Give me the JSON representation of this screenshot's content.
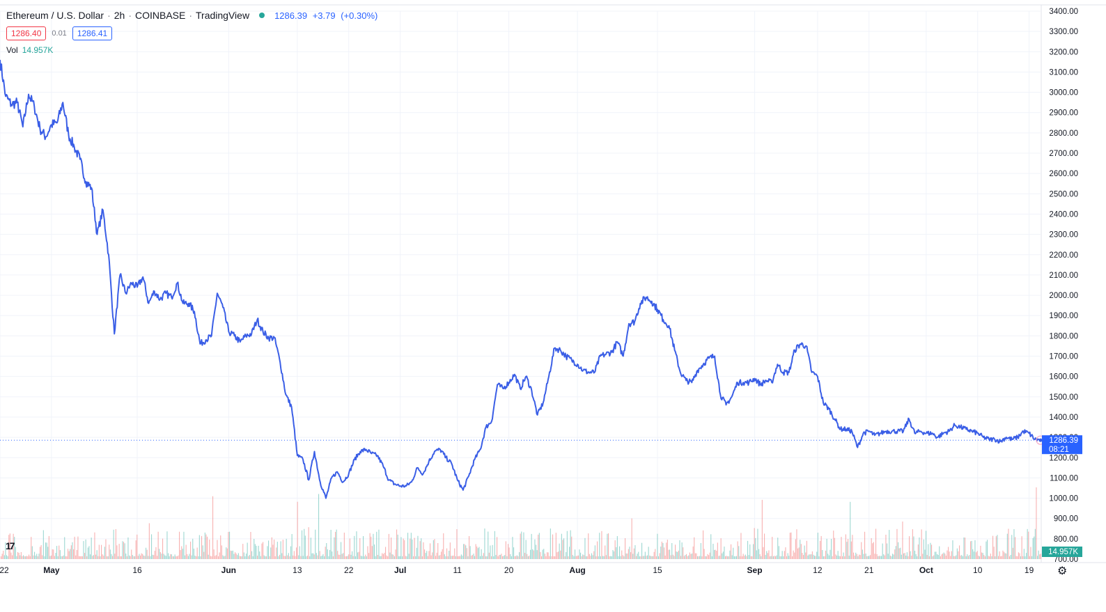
{
  "header": {
    "symbol": "Ethereum / U.S. Dollar",
    "interval": "2h",
    "exchange": "COINBASE",
    "source": "TradingView",
    "sep1": "·",
    "sep2": "·",
    "sep3": "·",
    "last": "1286.39",
    "change": "+3.79",
    "change_pct": "(+0.30%)",
    "bid": "1286.40",
    "spread": "0.01",
    "ask": "1286.41",
    "vol_label": "Vol",
    "vol_value": "14.957K",
    "price_tag": "1286.39",
    "countdown": "08:21",
    "vol_tag": "14.957K"
  },
  "colors": {
    "line": "#3a5ee6",
    "up": "#26a69a",
    "down": "#ef5350",
    "grid": "#f0f3fa",
    "axis_text": "#131722",
    "tag": "#2962ff"
  },
  "icons": {
    "logo": "tradingview-logo-icon",
    "settings": "gear-icon"
  },
  "chart_data": {
    "type": "line",
    "title": "",
    "xlabel": "",
    "ylabel": "",
    "ylim": [
      700,
      3400
    ],
    "y_ticks": [
      "3400.00",
      "3300.00",
      "3200.00",
      "3100.00",
      "3000.00",
      "2900.00",
      "2800.00",
      "2700.00",
      "2600.00",
      "2500.00",
      "2400.00",
      "2300.00",
      "2200.00",
      "2100.00",
      "2000.00",
      "1900.00",
      "1800.00",
      "1700.00",
      "1600.00",
      "1500.00",
      "1400.00",
      "1300.00",
      "1200.00",
      "1100.00",
      "1000.00",
      "900.00",
      "800.00",
      "700.00"
    ],
    "x_ticks": [
      "22",
      "May",
      "16",
      "Jun",
      "13",
      "22",
      "Jul",
      "11",
      "20",
      "Aug",
      "15",
      "Sep",
      "12",
      "21",
      "Oct",
      "10",
      "19"
    ],
    "x_tick_dates": [
      "2022-04-22",
      "2022-05-01",
      "2022-05-16",
      "2022-06-01",
      "2022-06-13",
      "2022-06-22",
      "2022-07-01",
      "2022-07-11",
      "2022-07-20",
      "2022-08-01",
      "2022-08-15",
      "2022-09-01",
      "2022-09-12",
      "2022-09-21",
      "2022-10-01",
      "2022-10-10",
      "2022-10-19"
    ],
    "xlim": [
      "2022-04-22",
      "2022-10-21"
    ],
    "grid": true,
    "series": [
      {
        "x": [
          "2022-04-22",
          "2022-04-23",
          "2022-04-24",
          "2022-04-25",
          "2022-04-26",
          "2022-04-27",
          "2022-04-28",
          "2022-04-29",
          "2022-04-30",
          "2022-05-01",
          "2022-05-02",
          "2022-05-03",
          "2022-05-04",
          "2022-05-05",
          "2022-05-06",
          "2022-05-07",
          "2022-05-08",
          "2022-05-09",
          "2022-05-10",
          "2022-05-11",
          "2022-05-12",
          "2022-05-13",
          "2022-05-14",
          "2022-05-15",
          "2022-05-16",
          "2022-05-17",
          "2022-05-18",
          "2022-05-19",
          "2022-05-20",
          "2022-05-21",
          "2022-05-22",
          "2022-05-23",
          "2022-05-24",
          "2022-05-25",
          "2022-05-26",
          "2022-05-27",
          "2022-05-28",
          "2022-05-29",
          "2022-05-30",
          "2022-05-31",
          "2022-06-01",
          "2022-06-02",
          "2022-06-03",
          "2022-06-04",
          "2022-06-05",
          "2022-06-06",
          "2022-06-07",
          "2022-06-08",
          "2022-06-09",
          "2022-06-10",
          "2022-06-11",
          "2022-06-12",
          "2022-06-13",
          "2022-06-14",
          "2022-06-15",
          "2022-06-16",
          "2022-06-17",
          "2022-06-18",
          "2022-06-19",
          "2022-06-20",
          "2022-06-21",
          "2022-06-22",
          "2022-06-23",
          "2022-06-24",
          "2022-06-25",
          "2022-06-26",
          "2022-06-27",
          "2022-06-28",
          "2022-06-29",
          "2022-06-30",
          "2022-07-01",
          "2022-07-02",
          "2022-07-03",
          "2022-07-04",
          "2022-07-05",
          "2022-07-06",
          "2022-07-07",
          "2022-07-08",
          "2022-07-09",
          "2022-07-10",
          "2022-07-11",
          "2022-07-12",
          "2022-07-13",
          "2022-07-14",
          "2022-07-15",
          "2022-07-16",
          "2022-07-17",
          "2022-07-18",
          "2022-07-19",
          "2022-07-20",
          "2022-07-21",
          "2022-07-22",
          "2022-07-23",
          "2022-07-24",
          "2022-07-25",
          "2022-07-26",
          "2022-07-27",
          "2022-07-28",
          "2022-07-29",
          "2022-07-30",
          "2022-07-31",
          "2022-08-01",
          "2022-08-02",
          "2022-08-03",
          "2022-08-04",
          "2022-08-05",
          "2022-08-06",
          "2022-08-07",
          "2022-08-08",
          "2022-08-09",
          "2022-08-10",
          "2022-08-11",
          "2022-08-12",
          "2022-08-13",
          "2022-08-14",
          "2022-08-15",
          "2022-08-16",
          "2022-08-17",
          "2022-08-18",
          "2022-08-19",
          "2022-08-20",
          "2022-08-21",
          "2022-08-22",
          "2022-08-23",
          "2022-08-24",
          "2022-08-25",
          "2022-08-26",
          "2022-08-27",
          "2022-08-28",
          "2022-08-29",
          "2022-08-30",
          "2022-08-31",
          "2022-09-01",
          "2022-09-02",
          "2022-09-03",
          "2022-09-04",
          "2022-09-05",
          "2022-09-06",
          "2022-09-07",
          "2022-09-08",
          "2022-09-09",
          "2022-09-10",
          "2022-09-11",
          "2022-09-12",
          "2022-09-13",
          "2022-09-14",
          "2022-09-15",
          "2022-09-16",
          "2022-09-17",
          "2022-09-18",
          "2022-09-19",
          "2022-09-20",
          "2022-09-21",
          "2022-09-22",
          "2022-09-23",
          "2022-09-24",
          "2022-09-25",
          "2022-09-26",
          "2022-09-27",
          "2022-09-28",
          "2022-09-29",
          "2022-09-30",
          "2022-10-01",
          "2022-10-02",
          "2022-10-03",
          "2022-10-04",
          "2022-10-05",
          "2022-10-06",
          "2022-10-07",
          "2022-10-08",
          "2022-10-09",
          "2022-10-10",
          "2022-10-11",
          "2022-10-12",
          "2022-10-13",
          "2022-10-14",
          "2022-10-15",
          "2022-10-16",
          "2022-10-17",
          "2022-10-18",
          "2022-10-19",
          "2022-10-20",
          "2022-10-21"
        ],
        "values": [
          3160,
          2980,
          2940,
          2950,
          2830,
          2990,
          2930,
          2820,
          2780,
          2840,
          2850,
          2950,
          2790,
          2730,
          2670,
          2560,
          2530,
          2300,
          2420,
          2200,
          1810,
          2100,
          2010,
          2060,
          2040,
          2090,
          1960,
          2020,
          1980,
          2010,
          1990,
          2060,
          1960,
          1960,
          1920,
          1760,
          1780,
          1800,
          2010,
          1940,
          1820,
          1800,
          1770,
          1800,
          1810,
          1880,
          1820,
          1790,
          1790,
          1670,
          1510,
          1450,
          1210,
          1190,
          1090,
          1230,
          1080,
          1000,
          1100,
          1130,
          1080,
          1120,
          1190,
          1230,
          1240,
          1220,
          1210,
          1160,
          1090,
          1070,
          1060,
          1060,
          1080,
          1150,
          1120,
          1180,
          1230,
          1240,
          1200,
          1170,
          1090,
          1040,
          1110,
          1190,
          1240,
          1350,
          1380,
          1560,
          1540,
          1570,
          1610,
          1540,
          1600,
          1530,
          1410,
          1470,
          1600,
          1740,
          1730,
          1700,
          1680,
          1660,
          1630,
          1620,
          1620,
          1700,
          1710,
          1720,
          1770,
          1700,
          1860,
          1870,
          1960,
          1990,
          1970,
          1930,
          1880,
          1850,
          1730,
          1620,
          1580,
          1570,
          1630,
          1660,
          1690,
          1700,
          1510,
          1460,
          1500,
          1570,
          1570,
          1570,
          1590,
          1560,
          1580,
          1570,
          1660,
          1620,
          1620,
          1730,
          1760,
          1750,
          1620,
          1600,
          1470,
          1440,
          1390,
          1340,
          1340,
          1330,
          1250,
          1320,
          1330,
          1310,
          1320,
          1330,
          1330,
          1330,
          1330,
          1390,
          1320,
          1330,
          1320,
          1320,
          1300,
          1320,
          1330,
          1360,
          1350,
          1340,
          1330,
          1320,
          1300,
          1290,
          1290,
          1280,
          1300,
          1290,
          1300,
          1330,
          1320,
          1290,
          1286
        ]
      }
    ],
    "volume": {
      "last": "14.957K",
      "note_up_color": "#26a69a",
      "note_down_color": "#ef5350"
    }
  }
}
